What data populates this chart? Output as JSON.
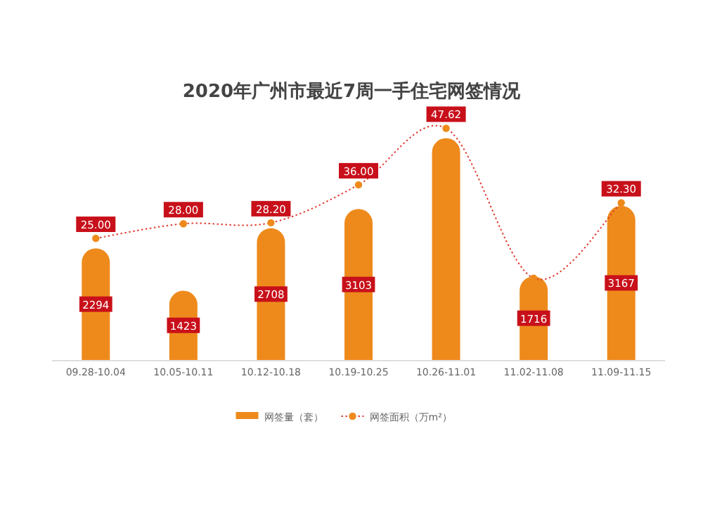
{
  "chart_data": {
    "type": "bar",
    "title": "2020年广州市最近7周一手住宅网签情况",
    "categories": [
      "09.28-10.04",
      "10.05-10.11",
      "10.12-10.18",
      "10.19-10.25",
      "10.26-11.01",
      "11.02-11.08",
      "11.09-11.15"
    ],
    "series": [
      {
        "name": "网签量（套）",
        "color": "#ee8a1c",
        "values": [
          2294,
          1423,
          2708,
          3103,
          4559,
          1716,
          3167
        ],
        "value_labels": [
          "2294",
          "1423",
          "2708",
          "3103",
          null,
          "1716",
          "3167"
        ]
      },
      {
        "name": "网签面积（万m²）",
        "type": "line",
        "axis": "y2",
        "color": "#e03a2f",
        "values": [
          25.0,
          28.0,
          28.2,
          36.0,
          47.62,
          16.8,
          32.3
        ],
        "value_labels": [
          "25.00",
          "28.00",
          "28.20",
          "36.00",
          "47.62",
          null,
          "32.30"
        ]
      }
    ],
    "marker": "circle",
    "line_style": "dotted",
    "legend": "bottom"
  }
}
